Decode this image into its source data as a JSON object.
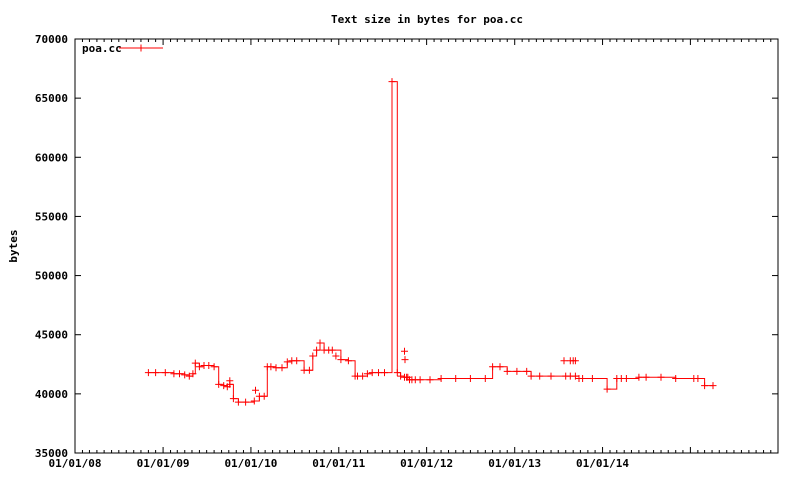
{
  "chart_data": {
    "type": "line",
    "title": "Text size in bytes for poa.cc",
    "xlabel": "",
    "ylabel": "bytes",
    "ylim": [
      35000,
      70000
    ],
    "xlim": [
      "2008-01-01",
      "2015-12-31"
    ],
    "y_ticks": [
      "35000",
      "40000",
      "45000",
      "50000",
      "55000",
      "60000",
      "65000",
      "70000"
    ],
    "x_ticks": [
      {
        "date": "2008-01-01",
        "label": "01/01/08"
      },
      {
        "date": "2009-01-01",
        "label": "01/01/09"
      },
      {
        "date": "2010-01-01",
        "label": "01/01/10"
      },
      {
        "date": "2011-01-01",
        "label": "01/01/11"
      },
      {
        "date": "2012-01-01",
        "label": "01/01/12"
      },
      {
        "date": "2013-01-01",
        "label": "01/01/13"
      },
      {
        "date": "2014-01-01",
        "label": "01/01/14"
      },
      {
        "date": "2015-01-01",
        "label": ""
      }
    ],
    "grid": false,
    "legend": "top-left",
    "color": "#ff0000",
    "series": [
      {
        "name": "poa.cc",
        "x": [
          "2008-11-01",
          "2008-12-01",
          "2009-01-10",
          "2009-02-15",
          "2009-03-10",
          "2009-04-01",
          "2009-04-20",
          "2009-05-05",
          "2009-05-15",
          "2009-06-01",
          "2009-06-20",
          "2009-07-10",
          "2009-08-01",
          "2009-08-20",
          "2009-09-10",
          "2009-09-25",
          "2009-10-05",
          "2009-10-20",
          "2009-11-10",
          "2009-12-10",
          "2010-01-15",
          "2010-02-05",
          "2010-02-25",
          "2010-03-10",
          "2010-03-25",
          "2010-04-15",
          "2010-05-10",
          "2010-06-01",
          "2010-06-20",
          "2010-07-10",
          "2010-08-10",
          "2010-09-01",
          "2010-09-15",
          "2010-10-01",
          "2010-10-15",
          "2010-11-01",
          "2010-11-20",
          "2010-12-05",
          "2011-01-10",
          "2011-02-10",
          "2011-03-10",
          "2011-03-20",
          "2011-04-10",
          "2011-04-30",
          "2011-05-20",
          "2011-06-15",
          "2011-07-10",
          "2011-08-10",
          "2011-09-01",
          "2011-09-15",
          "2011-10-01",
          "2011-10-10",
          "2011-10-15",
          "2011-10-22",
          "2011-11-01",
          "2011-11-15",
          "2011-12-05",
          "2012-01-15",
          "2012-03-01",
          "2012-05-01",
          "2012-07-01",
          "2012-09-01",
          "2012-10-01",
          "2012-11-01",
          "2012-12-01",
          "2013-01-10",
          "2013-02-20",
          "2013-03-10",
          "2013-04-15",
          "2013-06-01",
          "2013-08-01",
          "2013-08-20",
          "2013-09-10",
          "2013-09-25",
          "2013-10-10",
          "2013-11-20",
          "2014-01-20",
          "2014-03-01",
          "2014-03-20",
          "2014-04-10",
          "2014-06-01",
          "2014-07-01",
          "2014-09-01",
          "2014-11-01",
          "2015-01-15",
          "2015-02-01",
          "2015-03-01",
          "2015-04-05"
        ],
        "values": [
          41800,
          41800,
          41800,
          41700,
          41700,
          41600,
          41500,
          41700,
          42600,
          42300,
          42400,
          42400,
          42300,
          40800,
          40700,
          40600,
          40800,
          39600,
          39300,
          39300,
          39400,
          39800,
          39800,
          42300,
          42300,
          42200,
          42200,
          42700,
          42800,
          42800,
          42000,
          42000,
          43200,
          43700,
          44300,
          43700,
          43700,
          43700,
          42900,
          42800,
          41500,
          41500,
          41500,
          41700,
          41800,
          41800,
          41800,
          66400,
          41800,
          41500,
          41400,
          41400,
          41400,
          41200,
          41200,
          41200,
          41200,
          41200,
          41300,
          41300,
          41300,
          41300,
          42300,
          42300,
          41900,
          41900,
          41900,
          41500,
          41500,
          41500,
          41500,
          41500,
          41500,
          41300,
          41300,
          41300,
          40400,
          41300,
          41300,
          41300,
          41400,
          41400,
          41400,
          41300,
          41300,
          41300,
          40700,
          40700
        ],
        "extra_markers": [
          {
            "x": "2011-10-01",
            "y": 43600
          },
          {
            "x": "2011-10-03",
            "y": 42900
          },
          {
            "x": "2013-07-25",
            "y": 42800
          },
          {
            "x": "2013-08-20",
            "y": 42800
          },
          {
            "x": "2013-09-01",
            "y": 42800
          },
          {
            "x": "2013-09-10",
            "y": 42800
          },
          {
            "x": "2010-01-20",
            "y": 40300
          },
          {
            "x": "2009-10-05",
            "y": 41100
          },
          {
            "x": "2010-12-20",
            "y": 43200
          }
        ]
      }
    ]
  }
}
